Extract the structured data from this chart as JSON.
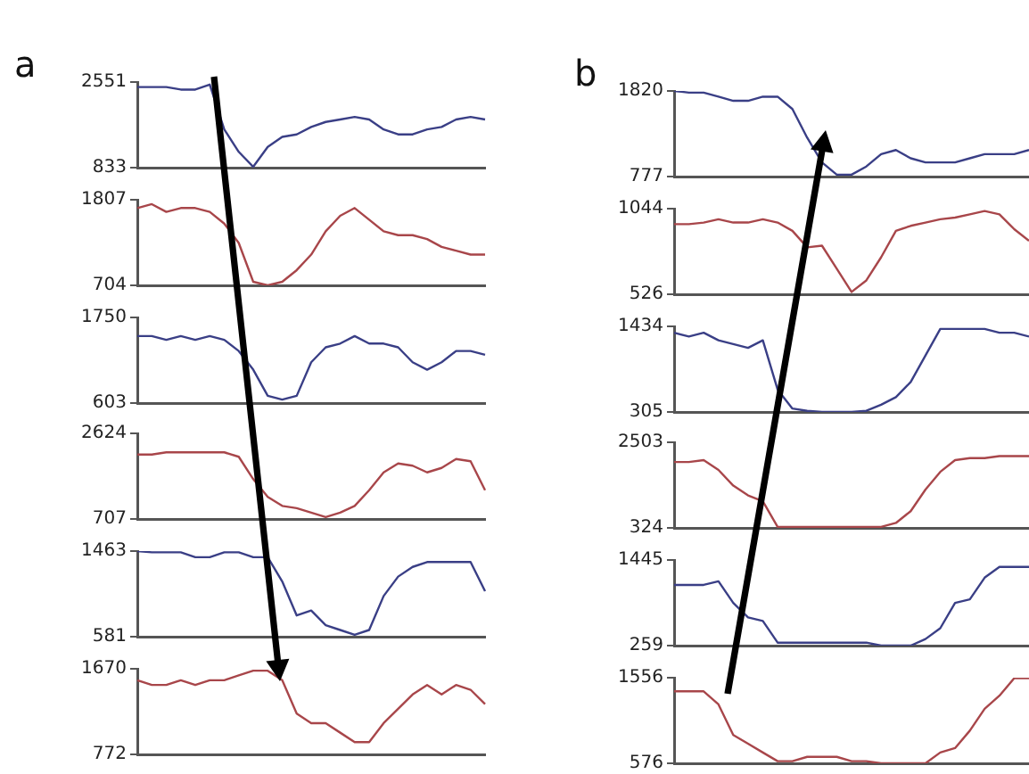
{
  "chart_data": [
    {
      "type": "line",
      "title": "a",
      "categories": [
        null,
        null,
        null,
        null,
        null,
        null,
        null,
        null,
        null,
        null,
        null,
        null,
        null,
        null,
        null,
        null,
        null,
        null,
        null,
        null,
        null,
        null,
        null,
        null,
        null
      ],
      "ylim": [
        833,
        2551
      ],
      "yticks": [
        833,
        2551
      ],
      "tick_labels": "y",
      "series": [
        {
          "color": "#3a3f86",
          "values": [
            2450,
            2450,
            2450,
            2400,
            2400,
            2500,
            1600,
            1150,
            850,
            1250,
            1450,
            1500,
            1650,
            1750,
            1800,
            1850,
            1800,
            1600,
            1500,
            1500,
            1600,
            1650,
            1800,
            1850,
            1800
          ]
        }
      ]
    },
    {
      "type": "line",
      "categories": [
        null,
        null,
        null,
        null,
        null,
        null,
        null,
        null,
        null,
        null,
        null,
        null,
        null,
        null,
        null,
        null,
        null,
        null,
        null,
        null,
        null,
        null,
        null,
        null,
        null
      ],
      "ylim": [
        704,
        1807
      ],
      "yticks": [
        704,
        1807
      ],
      "tick_labels": "y",
      "series": [
        {
          "color": "#a8464a",
          "values": [
            1700,
            1750,
            1650,
            1700,
            1700,
            1650,
            1500,
            1250,
            750,
            704,
            750,
            900,
            1100,
            1400,
            1600,
            1700,
            1550,
            1400,
            1350,
            1350,
            1300,
            1200,
            1150,
            1100,
            1100
          ]
        }
      ]
    },
    {
      "type": "line",
      "categories": [
        null,
        null,
        null,
        null,
        null,
        null,
        null,
        null,
        null,
        null,
        null,
        null,
        null,
        null,
        null,
        null,
        null,
        null,
        null,
        null,
        null,
        null,
        null,
        null,
        null
      ],
      "ylim": [
        603,
        1750
      ],
      "yticks": [
        603,
        1750
      ],
      "tick_labels": "y",
      "series": [
        {
          "color": "#3a3f86",
          "values": [
            1500,
            1500,
            1450,
            1500,
            1450,
            1500,
            1450,
            1300,
            1050,
            700,
            650,
            700,
            1150,
            1350,
            1400,
            1500,
            1400,
            1400,
            1350,
            1150,
            1050,
            1150,
            1300,
            1300,
            1250
          ]
        }
      ]
    },
    {
      "type": "line",
      "categories": [
        null,
        null,
        null,
        null,
        null,
        null,
        null,
        null,
        null,
        null,
        null,
        null,
        null,
        null,
        null,
        null,
        null,
        null,
        null,
        null,
        null,
        null,
        null,
        null,
        null
      ],
      "ylim": [
        707,
        2624
      ],
      "yticks": [
        707,
        2624
      ],
      "tick_labels": "y",
      "series": [
        {
          "color": "#a8464a",
          "values": [
            2150,
            2150,
            2200,
            2200,
            2200,
            2200,
            2200,
            2100,
            1600,
            1200,
            1000,
            950,
            850,
            750,
            850,
            1000,
            1350,
            1750,
            1950,
            1900,
            1750,
            1850,
            2050,
            2000,
            1350
          ]
        }
      ]
    },
    {
      "type": "line",
      "categories": [
        null,
        null,
        null,
        null,
        null,
        null,
        null,
        null,
        null,
        null,
        null,
        null,
        null,
        null,
        null,
        null,
        null,
        null,
        null,
        null,
        null,
        null,
        null,
        null,
        null
      ],
      "ylim": [
        581,
        1463
      ],
      "yticks": [
        581,
        1463
      ],
      "tick_labels": "y",
      "series": [
        {
          "color": "#3a3f86",
          "values": [
            1463,
            1450,
            1450,
            1450,
            1400,
            1400,
            1450,
            1450,
            1400,
            1400,
            1150,
            800,
            850,
            700,
            650,
            600,
            650,
            1000,
            1200,
            1300,
            1350,
            1350,
            1350,
            1350,
            1050
          ]
        }
      ]
    },
    {
      "type": "line",
      "categories": [
        null,
        null,
        null,
        null,
        null,
        null,
        null,
        null,
        null,
        null,
        null,
        null,
        null,
        null,
        null,
        null,
        null,
        null,
        null,
        null,
        null,
        null,
        null,
        null,
        null
      ],
      "ylim": [
        772,
        1670
      ],
      "yticks": [
        772,
        1670
      ],
      "tick_labels": "y",
      "series": [
        {
          "color": "#a8464a",
          "values": [
            1550,
            1500,
            1500,
            1550,
            1500,
            1550,
            1550,
            1600,
            1650,
            1650,
            1550,
            1200,
            1100,
            1100,
            1000,
            900,
            900,
            1100,
            1250,
            1400,
            1500,
            1400,
            1500,
            1450,
            1300
          ]
        }
      ]
    },
    {
      "type": "line",
      "title": "b",
      "categories": [
        null,
        null,
        null,
        null,
        null,
        null,
        null,
        null,
        null,
        null,
        null,
        null,
        null,
        null,
        null,
        null,
        null,
        null,
        null,
        null,
        null,
        null,
        null,
        null,
        null
      ],
      "ylim": [
        777,
        1820
      ],
      "yticks": [
        777,
        1820
      ],
      "tick_labels": "y",
      "series": [
        {
          "color": "#3a3f86",
          "values": [
            1820,
            1800,
            1800,
            1750,
            1700,
            1700,
            1750,
            1750,
            1600,
            1250,
            950,
            800,
            800,
            900,
            1050,
            1100,
            1000,
            950,
            950,
            950,
            1000,
            1050,
            1050,
            1050,
            1100
          ]
        }
      ]
    },
    {
      "type": "line",
      "categories": [
        null,
        null,
        null,
        null,
        null,
        null,
        null,
        null,
        null,
        null,
        null,
        null,
        null,
        null,
        null,
        null,
        null,
        null,
        null,
        null,
        null,
        null,
        null,
        null,
        null
      ],
      "ylim": [
        526,
        1044
      ],
      "yticks": [
        526,
        1044
      ],
      "tick_labels": "y",
      "series": [
        {
          "color": "#a8464a",
          "values": [
            950,
            950,
            960,
            980,
            960,
            960,
            980,
            960,
            910,
            810,
            820,
            680,
            540,
            610,
            750,
            910,
            940,
            960,
            980,
            990,
            1010,
            1030,
            1010,
            920,
            850
          ]
        }
      ]
    },
    {
      "type": "line",
      "categories": [
        null,
        null,
        null,
        null,
        null,
        null,
        null,
        null,
        null,
        null,
        null,
        null,
        null,
        null,
        null,
        null,
        null,
        null,
        null,
        null,
        null,
        null,
        null,
        null,
        null
      ],
      "ylim": [
        305,
        1434
      ],
      "yticks": [
        305,
        1434
      ],
      "tick_labels": "y",
      "series": [
        {
          "color": "#3a3f86",
          "values": [
            1350,
            1300,
            1350,
            1250,
            1200,
            1150,
            1250,
            600,
            350,
            320,
            305,
            305,
            305,
            320,
            400,
            500,
            700,
            1050,
            1400,
            1400,
            1400,
            1400,
            1350,
            1350,
            1300
          ]
        }
      ]
    },
    {
      "type": "line",
      "categories": [
        null,
        null,
        null,
        null,
        null,
        null,
        null,
        null,
        null,
        null,
        null,
        null,
        null,
        null,
        null,
        null,
        null,
        null,
        null,
        null,
        null,
        null,
        null,
        null,
        null
      ],
      "ylim": [
        324,
        2503
      ],
      "yticks": [
        324,
        2503
      ],
      "tick_labels": "y",
      "series": [
        {
          "color": "#a8464a",
          "values": [
            2000,
            2000,
            2050,
            1800,
            1400,
            1150,
            1000,
            350,
            350,
            350,
            350,
            350,
            350,
            350,
            350,
            450,
            750,
            1300,
            1750,
            2050,
            2100,
            2100,
            2150,
            2150,
            2150
          ]
        }
      ]
    },
    {
      "type": "line",
      "categories": [
        null,
        null,
        null,
        null,
        null,
        null,
        null,
        null,
        null,
        null,
        null,
        null,
        null,
        null,
        null,
        null,
        null,
        null,
        null,
        null,
        null,
        null,
        null,
        null,
        null
      ],
      "ylim": [
        259,
        1445
      ],
      "yticks": [
        259,
        1445
      ],
      "tick_labels": "y",
      "series": [
        {
          "color": "#3a3f86",
          "values": [
            1100,
            1100,
            1100,
            1150,
            850,
            650,
            600,
            300,
            300,
            300,
            300,
            300,
            300,
            300,
            259,
            259,
            259,
            350,
            500,
            850,
            900,
            1200,
            1350,
            1350,
            1350
          ]
        }
      ]
    },
    {
      "type": "line",
      "categories": [
        null,
        null,
        null,
        null,
        null,
        null,
        null,
        null,
        null,
        null,
        null,
        null,
        null,
        null,
        null,
        null,
        null,
        null,
        null,
        null,
        null,
        null,
        null,
        null,
        null
      ],
      "ylim": [
        576,
        1556
      ],
      "yticks": [
        576,
        1556
      ],
      "tick_labels": "y",
      "series": [
        {
          "color": "#a8464a",
          "values": [
            1400,
            1400,
            1400,
            1250,
            900,
            800,
            700,
            600,
            600,
            650,
            650,
            650,
            600,
            600,
            576,
            576,
            576,
            576,
            700,
            750,
            950,
            1200,
            1350,
            1550,
            1550
          ]
        }
      ]
    }
  ]
}
